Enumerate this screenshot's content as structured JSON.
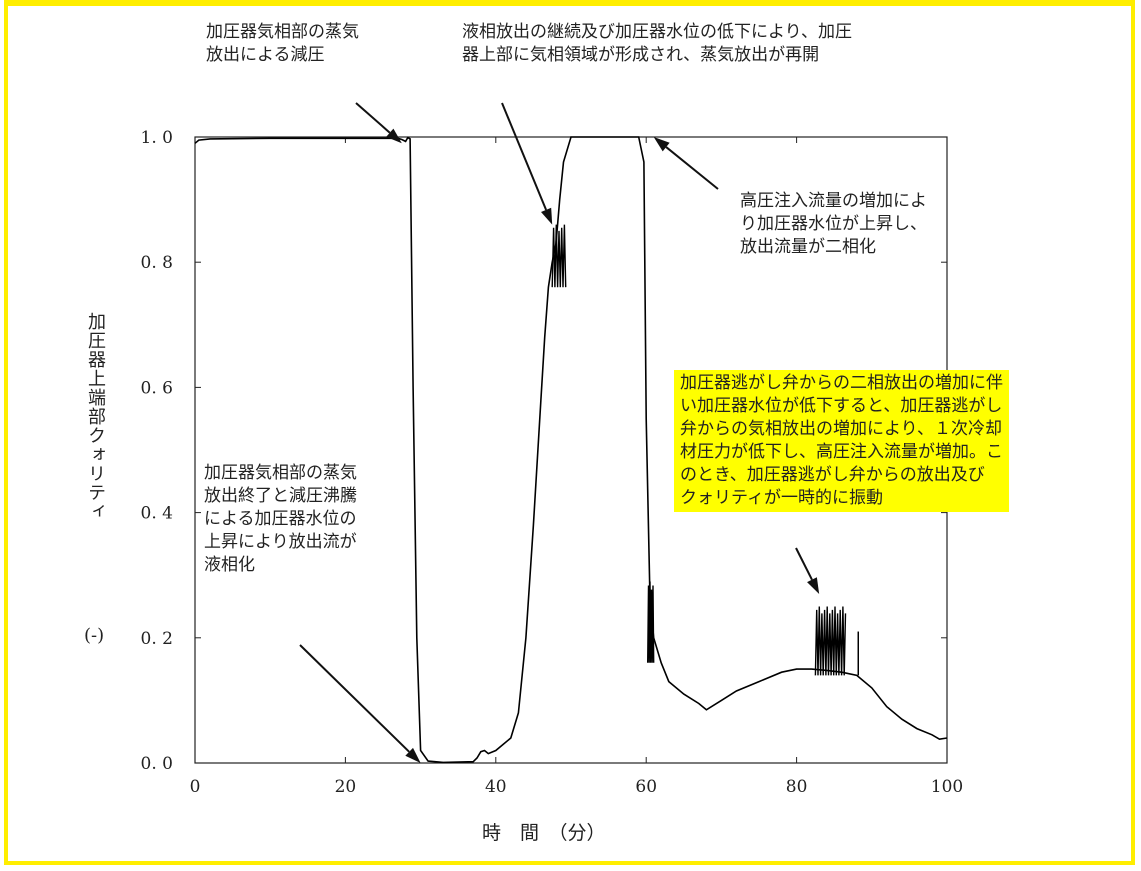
{
  "chart_data": {
    "type": "line",
    "xlabel": "時　間　（分）",
    "ylabel": "加圧器上端部クォリティ",
    "ylabel_unit": "(-)",
    "xlim": [
      0,
      100
    ],
    "ylim": [
      0,
      1.0
    ],
    "x_ticks": [
      0,
      20,
      40,
      60,
      80,
      100
    ],
    "x_tick_labels": [
      "0",
      "20",
      "40",
      "60",
      "80",
      "100"
    ],
    "y_ticks": [
      0,
      0.2,
      0.4,
      0.6,
      0.8,
      1.0
    ],
    "y_tick_labels": [
      "0. 0",
      "0. 2",
      "0. 4",
      "0. 6",
      "0. 8",
      "1. 0"
    ],
    "grid": false,
    "x": [
      0,
      0.5,
      2,
      10,
      20,
      27,
      27.5,
      28,
      28.3,
      28.6,
      29,
      29.5,
      30,
      31,
      33,
      37,
      37.5,
      38,
      38.5,
      39,
      40,
      41,
      42,
      43,
      44,
      45,
      46,
      46.5,
      47,
      47.5,
      48,
      48.5,
      49,
      50,
      51,
      52,
      55,
      59,
      59.7,
      60,
      60.5,
      61,
      62,
      63,
      65,
      67,
      68,
      70,
      72,
      75,
      78,
      80,
      82,
      84,
      86,
      88,
      90,
      92,
      94,
      96,
      98,
      99,
      100
    ],
    "y": [
      0.99,
      0.995,
      0.997,
      0.998,
      0.998,
      0.998,
      0.996,
      0.993,
      0.999,
      0.997,
      0.6,
      0.2,
      0.02,
      0.003,
      0.001,
      0.002,
      0.008,
      0.018,
      0.02,
      0.015,
      0.02,
      0.03,
      0.04,
      0.08,
      0.2,
      0.38,
      0.58,
      0.68,
      0.76,
      0.8,
      0.83,
      0.9,
      0.96,
      1.0,
      1.0,
      1.0,
      1.0,
      1.0,
      0.96,
      0.55,
      0.26,
      0.2,
      0.16,
      0.13,
      0.11,
      0.095,
      0.085,
      0.1,
      0.115,
      0.13,
      0.145,
      0.15,
      0.15,
      0.148,
      0.145,
      0.14,
      0.12,
      0.09,
      0.07,
      0.055,
      0.045,
      0.038,
      0.04
    ],
    "oscillation_bursts": [
      {
        "x_start": 82.5,
        "x_end": 86.5,
        "y_low": 0.14,
        "y_high": 0.25
      },
      {
        "x_start": 47.5,
        "x_end": 49.3,
        "y_low": 0.76,
        "y_high": 0.86
      },
      {
        "x_start": 60.2,
        "x_end": 61.0,
        "y_low": 0.16,
        "y_high": 0.29
      }
    ],
    "spikes": [
      {
        "x": 88.2,
        "y_low": 0.14,
        "y_high": 0.21
      }
    ],
    "annotations": [
      {
        "text": "加圧器気相部の蒸気\n放出による減圧",
        "target_x": 27.5,
        "target_y": 0.99
      },
      {
        "text": "液相放出の継続及び加圧器水位の低下により、加圧\n器上部に気相領域が形成され、蒸気放出が再開",
        "target_x": 47.5,
        "target_y": 0.86
      },
      {
        "text": "高圧注入流量の増加によ\nり加圧器水位が上昇し、\n放出流量が二相化",
        "target_x": 61,
        "target_y": 1.0
      },
      {
        "text": "加圧器逃がし弁からの二相放出の増加に伴\nい加圧器水位が低下すると、加圧器逃がし\n弁からの気相放出の増加により、１次冷却\n材圧力が低下し、高圧注入流量が増加。こ\nのとき、加圧器逃がし弁からの放出及び\nクォリティが一時的に振動",
        "target_x": 83,
        "target_y": 0.27,
        "highlight": true
      },
      {
        "text": "加圧器気相部の蒸気\n放出終了と減圧沸騰\nによる加圧器水位の\n上昇により放出流が\n液相化",
        "target_x": 30,
        "target_y": 0.0
      }
    ]
  },
  "colors": {
    "frame": "#ffee00",
    "highlight": "#ffff00",
    "line": "#000000"
  }
}
